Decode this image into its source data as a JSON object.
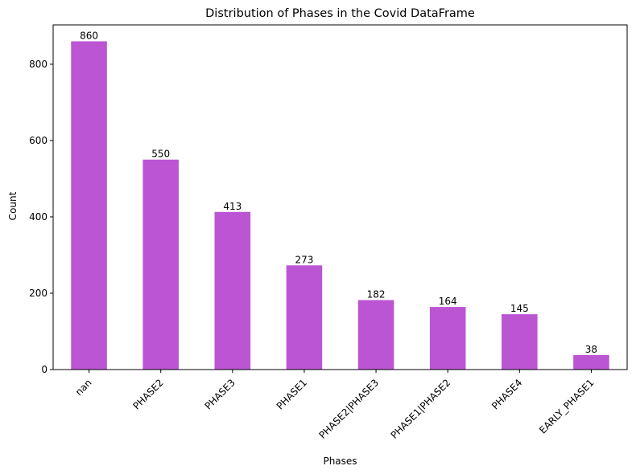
{
  "chart_data": {
    "type": "bar",
    "title": "Distribution of Phases in the Covid DataFrame",
    "xlabel": "Phases",
    "ylabel": "Count",
    "categories": [
      "nan",
      "PHASE2",
      "PHASE3",
      "PHASE1",
      "PHASE2|PHASE3",
      "PHASE1|PHASE2",
      "PHASE4",
      "EARLY_PHASE1"
    ],
    "values": [
      860,
      550,
      413,
      273,
      182,
      164,
      145,
      38
    ],
    "ylim": [
      0,
      903
    ],
    "yticks": [
      0,
      200,
      400,
      600,
      800
    ],
    "bar_color": "#bb55d4",
    "grid": false,
    "legend": "none",
    "data_labels": true,
    "xtick_rotation": 45
  }
}
